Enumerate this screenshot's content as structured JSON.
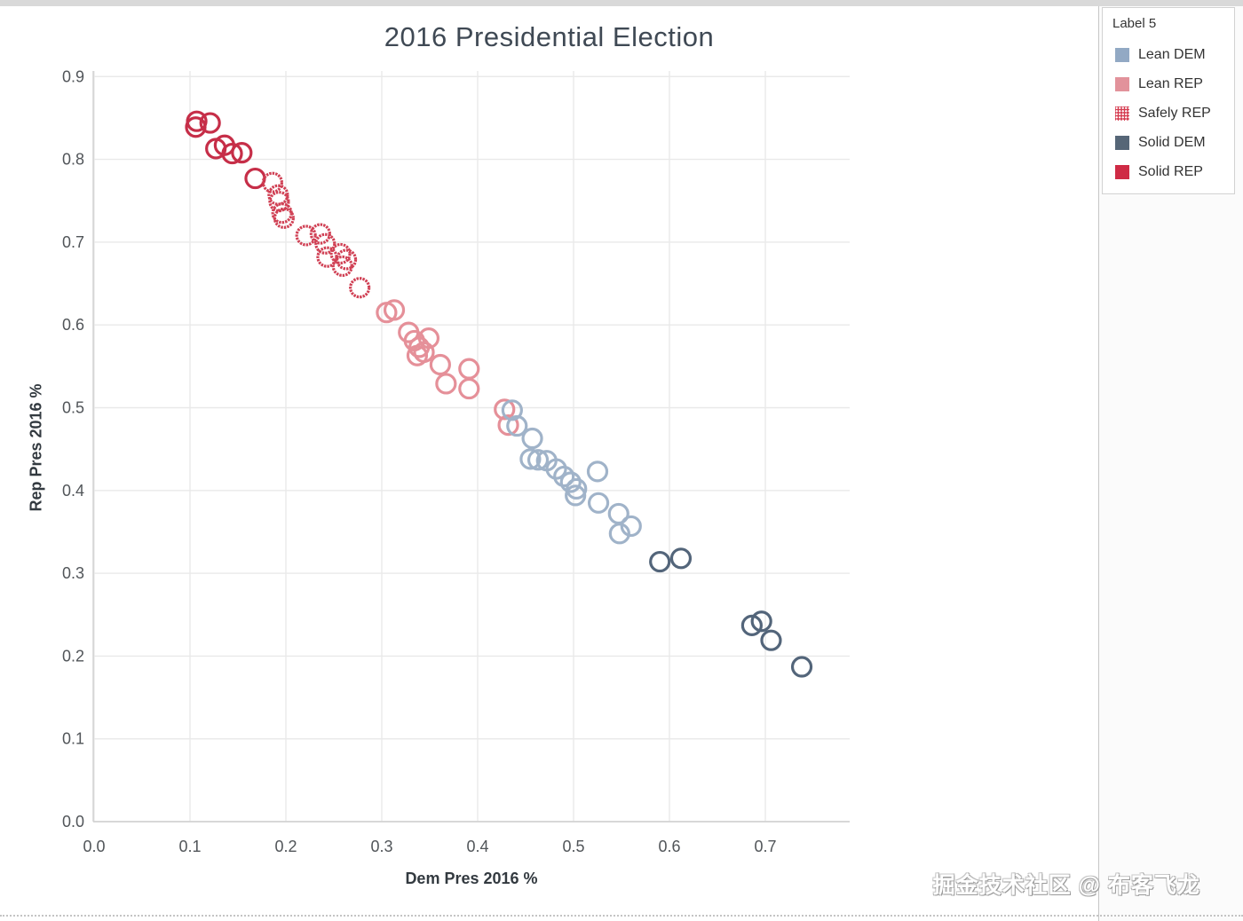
{
  "watermark": "掘金技术社区 @ 布客飞龙",
  "legend": {
    "title": "Label 5",
    "items": [
      {
        "label": "Lean DEM",
        "color": "#92a9c4",
        "pattern": "solid"
      },
      {
        "label": "Lean REP",
        "color": "#e2929b",
        "pattern": "solid"
      },
      {
        "label": "Safely REP",
        "color": "#d63e52",
        "pattern": "dotted"
      },
      {
        "label": "Solid DEM",
        "color": "#566677",
        "pattern": "solid"
      },
      {
        "label": "Solid REP",
        "color": "#cf2b45",
        "pattern": "solid"
      }
    ]
  },
  "chart_data": {
    "type": "scatter",
    "title": "2016 Presidential Election",
    "xlabel": "Dem Pres 2016 %",
    "ylabel": "Rep Pres 2016 %",
    "xlim": [
      0.0,
      0.79
    ],
    "ylim": [
      0.0,
      0.906
    ],
    "x_ticks": [
      0.0,
      0.1,
      0.2,
      0.3,
      0.4,
      0.5,
      0.6,
      0.7
    ],
    "y_ticks": [
      0.0,
      0.1,
      0.2,
      0.3,
      0.4,
      0.5,
      0.6,
      0.7,
      0.8,
      0.9
    ],
    "grid": true,
    "legend_position": "right",
    "marker": "open-circle",
    "series": [
      {
        "name": "Solid REP",
        "color": "#c62e48",
        "pattern": "solid",
        "points": [
          [
            0.107,
            0.846
          ],
          [
            0.106,
            0.839
          ],
          [
            0.121,
            0.844
          ],
          [
            0.127,
            0.813
          ],
          [
            0.136,
            0.817
          ],
          [
            0.144,
            0.807
          ],
          [
            0.154,
            0.808
          ],
          [
            0.168,
            0.777
          ]
        ]
      },
      {
        "name": "Safely REP",
        "color": "#d04054",
        "pattern": "dotted",
        "points": [
          [
            0.186,
            0.772
          ],
          [
            0.192,
            0.757
          ],
          [
            0.193,
            0.749
          ],
          [
            0.196,
            0.735
          ],
          [
            0.198,
            0.729
          ],
          [
            0.221,
            0.708
          ],
          [
            0.236,
            0.71
          ],
          [
            0.241,
            0.698
          ],
          [
            0.243,
            0.682
          ],
          [
            0.257,
            0.686
          ],
          [
            0.263,
            0.679
          ],
          [
            0.259,
            0.671
          ],
          [
            0.277,
            0.645
          ]
        ]
      },
      {
        "name": "Lean REP",
        "color": "#e59099",
        "pattern": "solid",
        "points": [
          [
            0.305,
            0.615
          ],
          [
            0.313,
            0.618
          ],
          [
            0.328,
            0.591
          ],
          [
            0.334,
            0.581
          ],
          [
            0.339,
            0.573
          ],
          [
            0.349,
            0.584
          ],
          [
            0.344,
            0.567
          ],
          [
            0.337,
            0.563
          ],
          [
            0.361,
            0.552
          ],
          [
            0.367,
            0.529
          ],
          [
            0.391,
            0.547
          ],
          [
            0.391,
            0.523
          ],
          [
            0.428,
            0.498
          ],
          [
            0.432,
            0.479
          ]
        ]
      },
      {
        "name": "Lean DEM",
        "color": "#a0b3c9",
        "pattern": "solid",
        "points": [
          [
            0.436,
            0.497
          ],
          [
            0.441,
            0.478
          ],
          [
            0.457,
            0.463
          ],
          [
            0.455,
            0.438
          ],
          [
            0.463,
            0.437
          ],
          [
            0.472,
            0.436
          ],
          [
            0.482,
            0.426
          ],
          [
            0.49,
            0.417
          ],
          [
            0.497,
            0.41
          ],
          [
            0.503,
            0.402
          ],
          [
            0.502,
            0.394
          ],
          [
            0.525,
            0.423
          ],
          [
            0.526,
            0.385
          ],
          [
            0.547,
            0.372
          ],
          [
            0.56,
            0.357
          ],
          [
            0.548,
            0.348
          ]
        ]
      },
      {
        "name": "Solid DEM",
        "color": "#53657a",
        "pattern": "solid",
        "points": [
          [
            0.59,
            0.314
          ],
          [
            0.612,
            0.318
          ],
          [
            0.686,
            0.237
          ],
          [
            0.696,
            0.242
          ],
          [
            0.706,
            0.219
          ],
          [
            0.738,
            0.187
          ]
        ]
      }
    ]
  }
}
